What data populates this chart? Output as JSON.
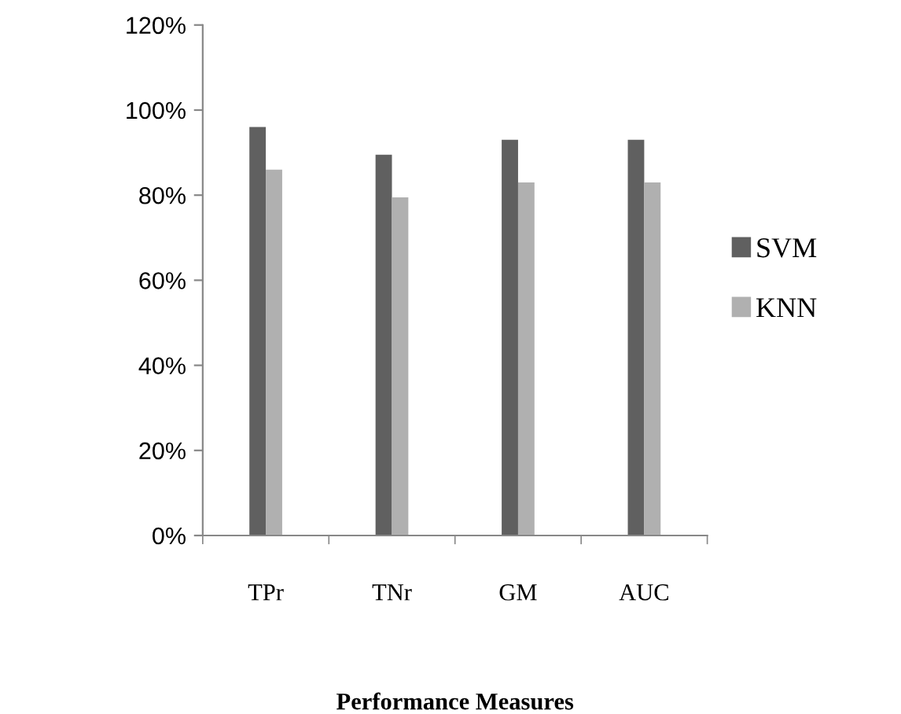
{
  "chart_data": {
    "type": "bar",
    "xlabel": "Performance Measures",
    "categories": [
      "TPr",
      "TNr",
      "GM",
      "AUC"
    ],
    "series": [
      {
        "name": "SVM",
        "color": "#606060",
        "values": [
          96,
          89.5,
          93,
          93
        ]
      },
      {
        "name": "KNN",
        "color": "#b0b0b0",
        "values": [
          86,
          79.5,
          83,
          83
        ]
      }
    ],
    "ylim": [
      0,
      120
    ],
    "yticks": [
      {
        "value": 0,
        "label": "0%"
      },
      {
        "value": 20,
        "label": "20%"
      },
      {
        "value": 40,
        "label": "40%"
      },
      {
        "value": 60,
        "label": "60%"
      },
      {
        "value": 80,
        "label": "80%"
      },
      {
        "value": 100,
        "label": "100%"
      },
      {
        "value": 120,
        "label": "120%"
      }
    ],
    "grid": false,
    "legend": "right"
  }
}
